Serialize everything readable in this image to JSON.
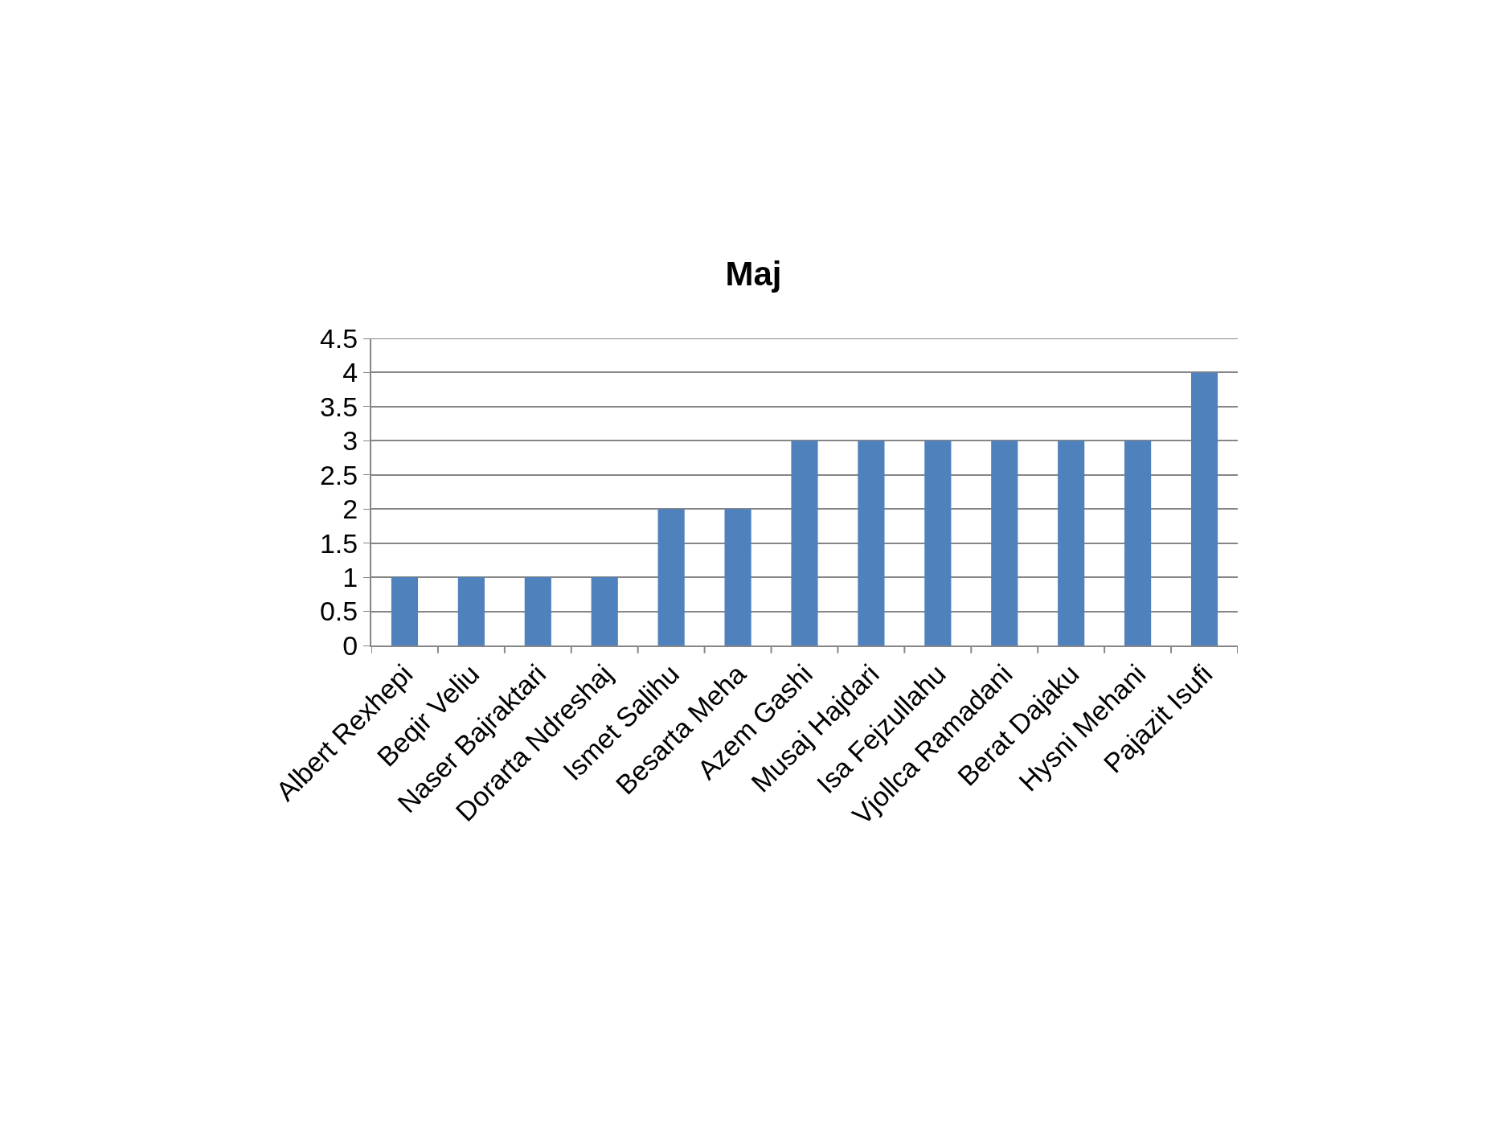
{
  "chart_data": {
    "type": "bar",
    "title": "Maj",
    "categories": [
      "Albert Rexhepi",
      "Beqir Veliu",
      "Naser Bajraktari",
      "Dorarta Ndreshaj",
      "Ismet Salihu",
      "Besarta Meha",
      "Azem Gashi",
      "Musaj Hajdari",
      "Isa Fejzullahu",
      "Vjollca Ramadani",
      "Berat Dajaku",
      "Hysni Mehani",
      "Pajazit Isufi"
    ],
    "values": [
      1,
      1,
      1,
      1,
      2,
      2,
      3,
      3,
      3,
      3,
      3,
      3,
      4
    ],
    "color": "#4f81bd",
    "ylim": [
      0,
      4.5
    ],
    "yticks": [
      0,
      0.5,
      1,
      1.5,
      2,
      2.5,
      3,
      3.5,
      4,
      4.5
    ],
    "grid": "y"
  }
}
